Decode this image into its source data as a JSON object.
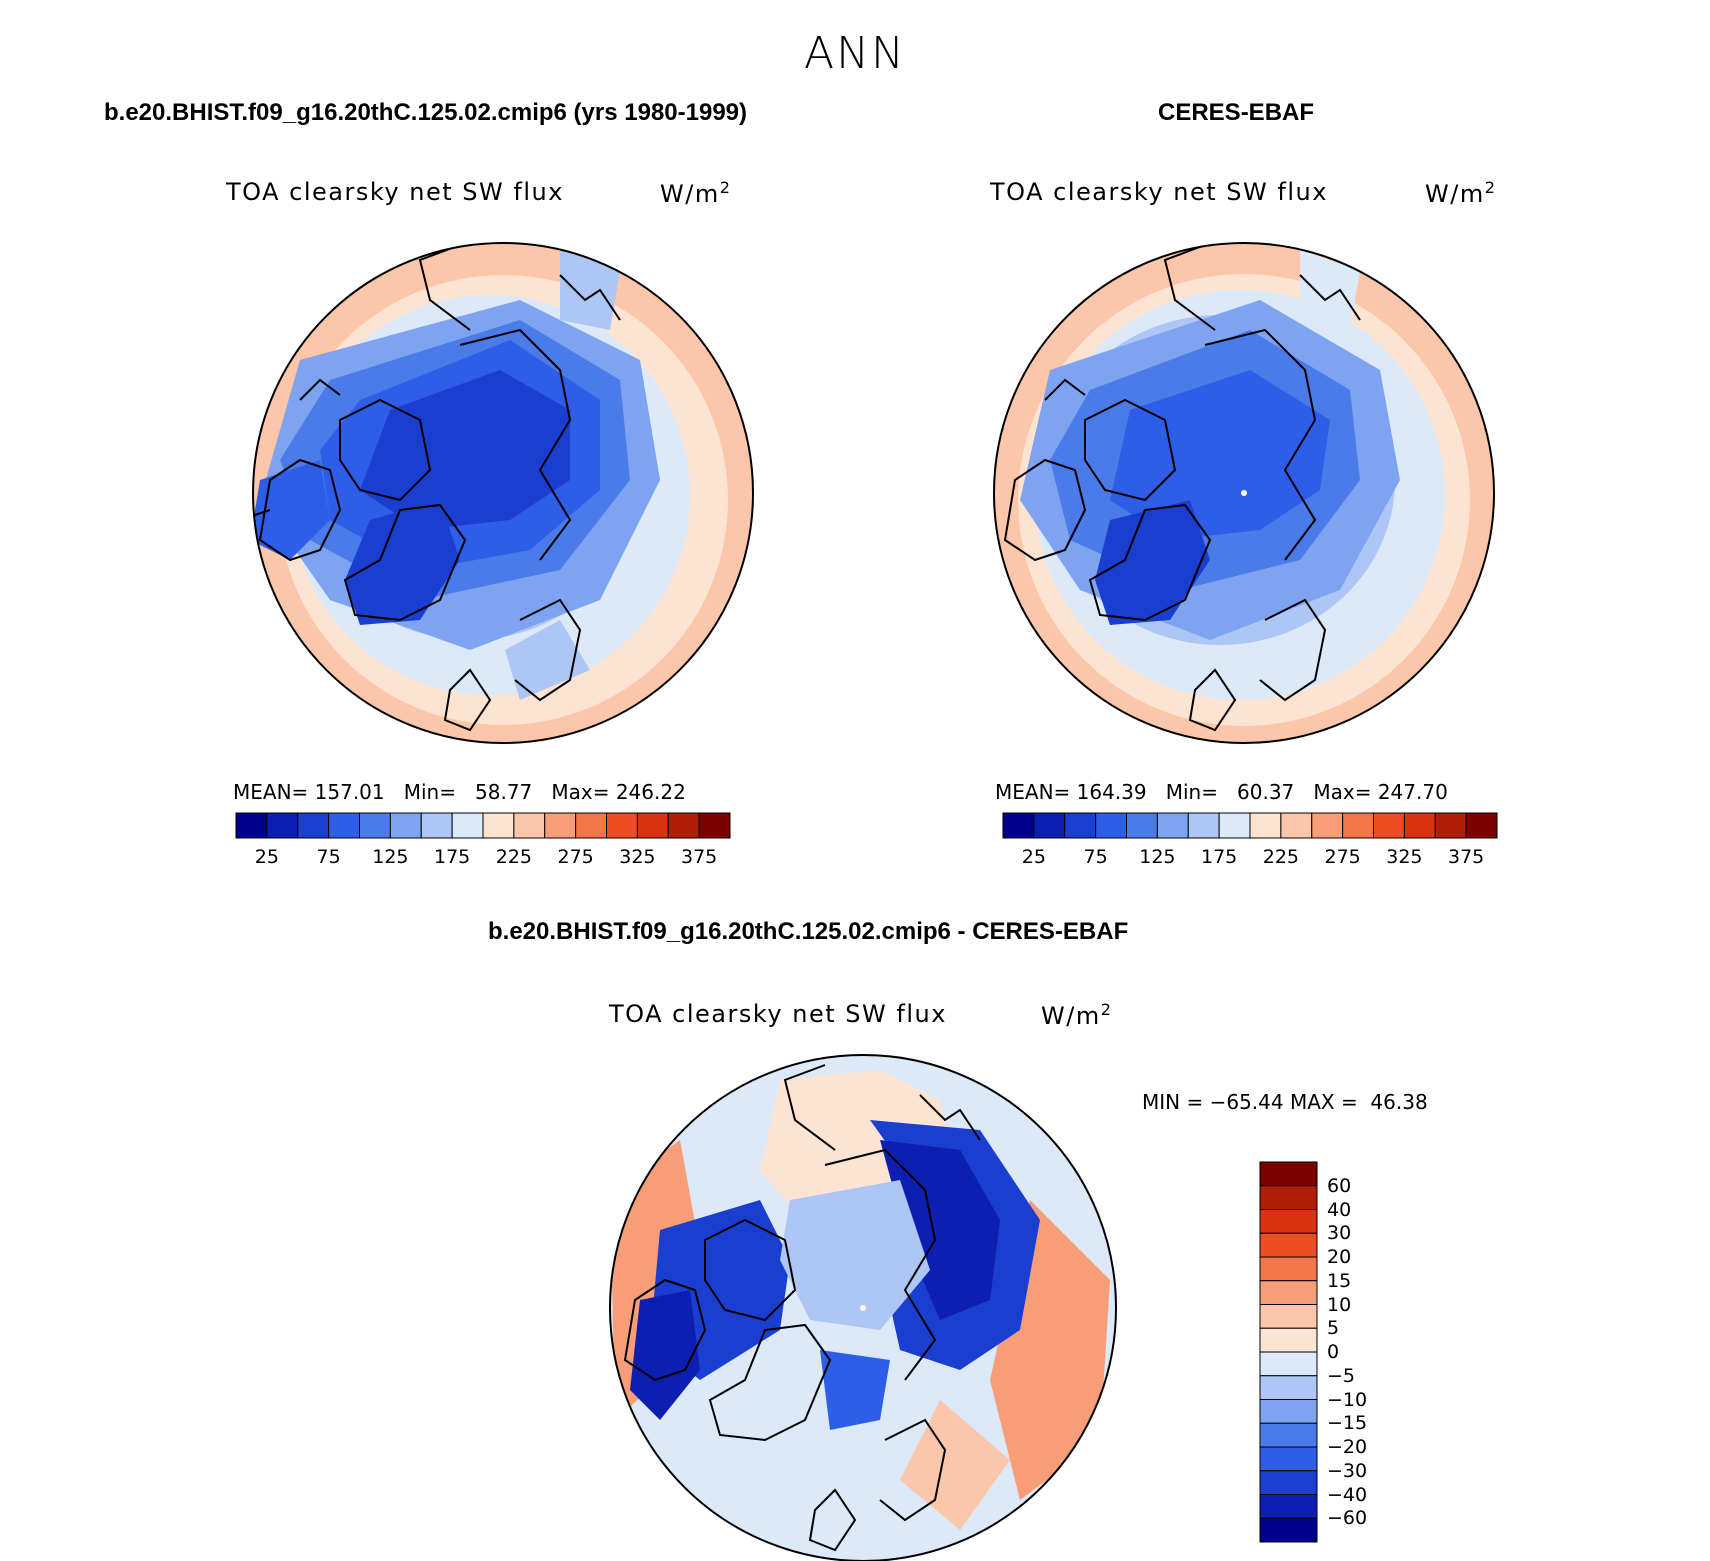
{
  "figure": {
    "title": "ANN"
  },
  "panels": [
    {
      "title": "b.e20.BHIST.f09_g16.20thC.125.02.cmip6 (yrs 1980-1999)",
      "variable": "TOA clearsky net SW flux",
      "units": "W/m",
      "units_superscript": "2",
      "stats": {
        "mean": "157.01",
        "min": "58.77",
        "max": "246.22"
      },
      "stats_text": "MEAN= 157.01   Min=   58.77   Max= 246.22",
      "colorbar_ticks": [
        "25",
        "75",
        "125",
        "175",
        "225",
        "275",
        "325",
        "375"
      ]
    },
    {
      "title": "CERES-EBAF",
      "variable": "TOA clearsky net SW flux",
      "units": "W/m",
      "units_superscript": "2",
      "stats": {
        "mean": "164.39",
        "min": "60.37",
        "max": "247.70"
      },
      "stats_text": "MEAN= 164.39   Min=   60.37   Max= 247.70",
      "colorbar_ticks": [
        "25",
        "75",
        "125",
        "175",
        "225",
        "275",
        "325",
        "375"
      ]
    },
    {
      "title": "b.e20.BHIST.f09_g16.20thC.125.02.cmip6 - CERES-EBAF",
      "variable": "TOA clearsky net SW flux",
      "units": "W/m",
      "units_superscript": "2",
      "minmax_text": "MIN = −65.44 MAX =  46.38",
      "colorbar_ticks": [
        "60",
        "40",
        "30",
        "20",
        "15",
        "10",
        "5",
        "0",
        "−5",
        "−10",
        "−15",
        "−20",
        "−30",
        "−40",
        "−60"
      ]
    }
  ],
  "colors": {
    "abs_scale": [
      "#00008c",
      "#0c1fb0",
      "#1a3fd0",
      "#2e5ee8",
      "#4b7be8",
      "#7ea3f0",
      "#adc6f5",
      "#dbe9f9",
      "#fde4d2",
      "#fbc6a9",
      "#f79e78",
      "#f3764b",
      "#ee4d23",
      "#d93312",
      "#b11e08",
      "#7d0000"
    ],
    "diff_scale": [
      "#7d0000",
      "#b11e08",
      "#d93312",
      "#ee4d23",
      "#f3764b",
      "#f79e78",
      "#fbc6a9",
      "#fde4d2",
      "#dbe9f9",
      "#adc6f5",
      "#7ea3f0",
      "#4b7be8",
      "#2e5ee8",
      "#1a3fd0",
      "#0c1fb0",
      "#00008c"
    ]
  }
}
